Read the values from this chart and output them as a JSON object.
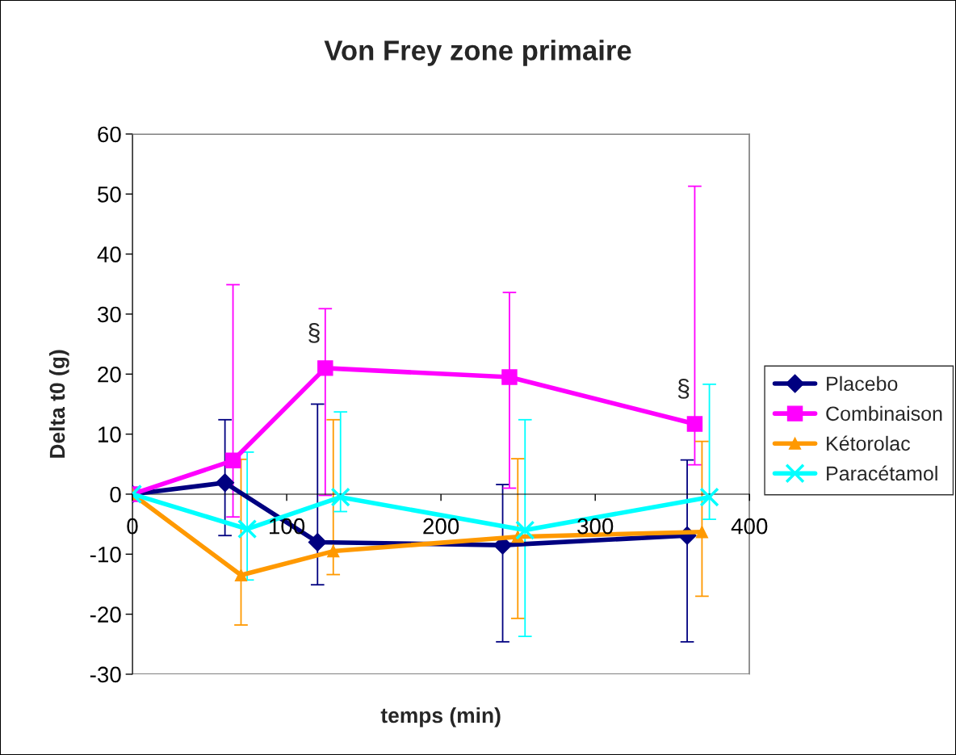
{
  "chart_data": {
    "type": "line",
    "title": "Von Frey zone primaire",
    "xlabel": "temps (min)",
    "ylabel": "Delta t0 (g)",
    "xlim": [
      0,
      400
    ],
    "xticks": [
      0,
      100,
      200,
      300,
      400
    ],
    "ylim": [
      -30,
      60
    ],
    "yticks": [
      -30,
      -20,
      -10,
      0,
      10,
      20,
      30,
      40,
      50,
      60
    ],
    "grid": false,
    "legend": "right",
    "line_style": "solid",
    "series": [
      {
        "name": "Placebo",
        "color": "#000080",
        "marker": "diamond",
        "x": [
          0,
          60,
          120,
          240,
          359.6
        ],
        "values": [
          0,
          1.9,
          -8.0,
          -8.5,
          -6.9
        ],
        "errors": [
          null,
          [
            -6.9,
            12.4
          ],
          [
            -15.1,
            15.0
          ],
          [
            -24.6,
            1.6
          ],
          [
            -24.6,
            5.7
          ]
        ]
      },
      {
        "name": "Combinaison",
        "color": "#ff00ff",
        "marker": "square",
        "x": [
          0,
          65.2,
          125,
          244.4,
          364.5
        ],
        "values": [
          0,
          5.6,
          21.0,
          19.5,
          11.7
        ],
        "errors": [
          null,
          [
            -3.8,
            34.9
          ],
          [
            -0.2,
            30.9
          ],
          [
            1.0,
            33.6
          ],
          [
            4.9,
            51.3
          ]
        ]
      },
      {
        "name": "Kétorolac",
        "color": "#ff9900",
        "marker": "triangle",
        "x": [
          0,
          70.4,
          130.2,
          249.8,
          369.2
        ],
        "values": [
          0,
          -13.5,
          -9.5,
          -7.1,
          -6.3
        ],
        "errors": [
          null,
          [
            -21.8,
            5.8
          ],
          [
            -13.4,
            12.4
          ],
          [
            -20.7,
            5.9
          ],
          [
            -17.0,
            8.8
          ]
        ]
      },
      {
        "name": "Paracétamol",
        "color": "#00ffff",
        "marker": "cross",
        "x": [
          0,
          74.4,
          134.9,
          254.5,
          374
        ],
        "values": [
          0,
          -5.8,
          -0.5,
          -6.0,
          -0.5
        ],
        "errors": [
          null,
          [
            -14.3,
            7.0
          ],
          [
            -2.9,
            13.7
          ],
          [
            -23.7,
            12.4
          ],
          [
            -4.2,
            18.3
          ]
        ]
      }
    ],
    "annotations": [
      {
        "text": "§",
        "x": 125,
        "y": 21.0
      },
      {
        "text": "§",
        "x": 364.5,
        "y": 11.7
      }
    ]
  }
}
